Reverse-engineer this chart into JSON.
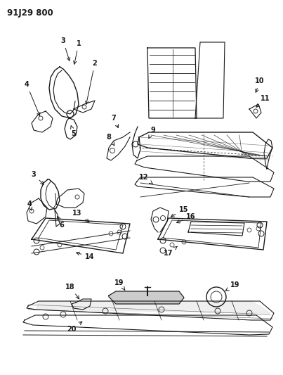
{
  "title": "91J29 800",
  "background_color": "#ffffff",
  "line_color": "#1a1a1a",
  "fig_width": 4.03,
  "fig_height": 5.33,
  "dpi": 100,
  "gray": "#888888",
  "lightgray": "#cccccc"
}
